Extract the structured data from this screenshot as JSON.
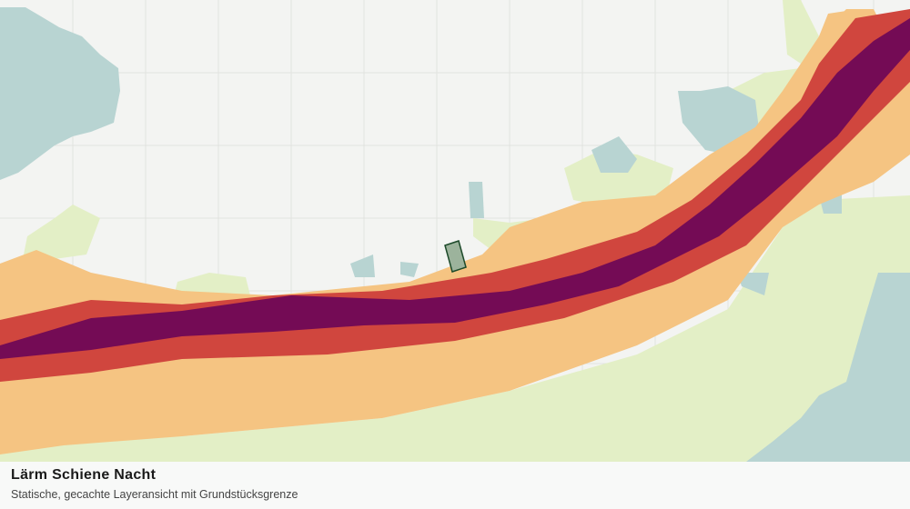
{
  "title": "Lärm Schiene Nacht",
  "subtitle": "Statische, gecachte Layeransicht mit Grundstücksgrenze"
}
